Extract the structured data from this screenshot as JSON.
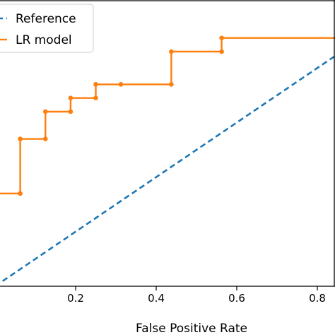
{
  "chart_data": {
    "type": "line",
    "xlabel": "False Positive Rate",
    "xticks": [
      "0.2",
      "0.4",
      "0.6",
      "0.8"
    ],
    "xtick_values": [
      0.2,
      0.4,
      0.6,
      0.8
    ],
    "legend_position": "top-left",
    "series": [
      {
        "name": "Reference",
        "style": "dashed",
        "color": "#1f77b4",
        "x": [
          0,
          1
        ],
        "y": [
          0,
          1
        ]
      },
      {
        "name": "LR model",
        "style": "solid-with-markers",
        "color": "#ff7f0e",
        "x": [
          0.0,
          0.0625,
          0.0625,
          0.125,
          0.125,
          0.1875,
          0.1875,
          0.25,
          0.25,
          0.3125,
          0.4375,
          0.4375,
          0.5625,
          0.5625,
          0.875
        ],
        "y": [
          0.34,
          0.34,
          0.54,
          0.54,
          0.64,
          0.64,
          0.69,
          0.69,
          0.74,
          0.74,
          0.74,
          0.86,
          0.86,
          0.91,
          0.91
        ]
      }
    ]
  }
}
